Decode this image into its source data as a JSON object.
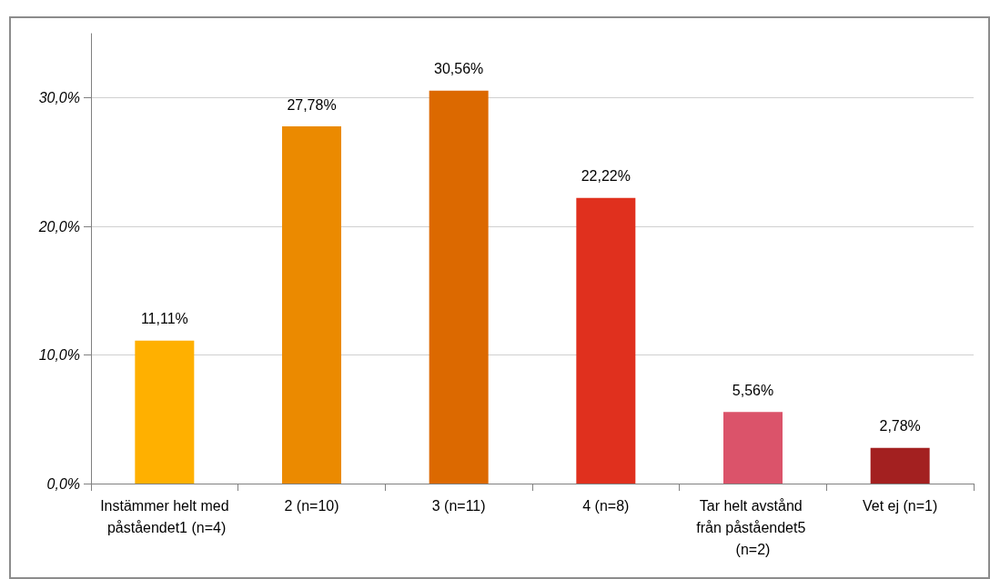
{
  "chart_data": {
    "type": "bar",
    "categories": [
      "Instämmer helt med påståendet1 (n=4)",
      "2 (n=10)",
      "3 (n=11)",
      "4 (n=8)",
      "Tar helt avstånd från påståendet5 (n=2)",
      "Vet ej (n=1)"
    ],
    "values": [
      11.11,
      27.78,
      30.56,
      22.22,
      5.56,
      2.78
    ],
    "colors": [
      "#ffb000",
      "#eb8a00",
      "#dc6900",
      "#e0301e",
      "#db536a",
      "#a32020"
    ],
    "ylim": [
      0,
      35
    ],
    "yticks": [
      {
        "value": 0,
        "label": "0,0%"
      },
      {
        "value": 10,
        "label": "10,0%"
      },
      {
        "value": 20,
        "label": "20,0%"
      },
      {
        "value": 30,
        "label": "30,0%"
      }
    ],
    "value_labels": [
      "11,11%",
      "27,78%",
      "30,56%",
      "22,22%",
      "5,56%",
      "2,78%"
    ],
    "grid": "y"
  }
}
